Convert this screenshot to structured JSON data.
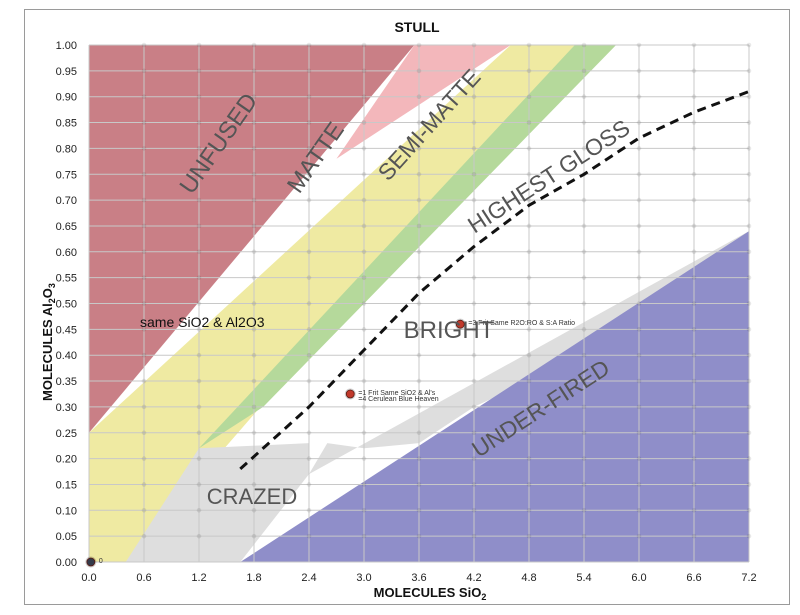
{
  "chart_data": {
    "type": "scatter",
    "title": "STULL",
    "xlabel": {
      "main": "MOLECULES",
      "species": "SiO",
      "sub": "2"
    },
    "ylabel": {
      "main": "MOLECULES",
      "species": "Al",
      "sub1": "2",
      "mid": "O",
      "sub2": "3"
    },
    "xlim": [
      0,
      7.2
    ],
    "ylim": [
      0,
      1.0
    ],
    "x_ticks": [
      "0.0",
      "0.6",
      "1.2",
      "1.8",
      "2.4",
      "3.0",
      "3.6",
      "4.2",
      "4.8",
      "5.4",
      "6.0",
      "6.6",
      "7.2"
    ],
    "y_ticks": [
      "0.00",
      "0.05",
      "0.10",
      "0.15",
      "0.20",
      "0.25",
      "0.30",
      "0.35",
      "0.40",
      "0.45",
      "0.50",
      "0.55",
      "0.60",
      "0.65",
      "0.70",
      "0.75",
      "0.80",
      "0.85",
      "0.90",
      "0.95",
      "1.00"
    ],
    "grid": true,
    "regions": [
      {
        "name": "UNFUSED",
        "color": "#c97f86",
        "polygon": [
          [
            0,
            0.25
          ],
          [
            0,
            1.0
          ],
          [
            3.55,
            1.0
          ]
        ]
      },
      {
        "name": "pink",
        "color": "#f3b7bb",
        "polygon": [
          [
            2.7,
            0.78
          ],
          [
            3.55,
            1.0
          ],
          [
            4.6,
            1.0
          ]
        ]
      },
      {
        "name": "MATTE",
        "color": "#efeaa2",
        "polygon": [
          [
            0,
            0.0
          ],
          [
            0,
            0.25
          ],
          [
            4.6,
            1.0
          ],
          [
            5.3,
            1.0
          ],
          [
            0.4,
            0.0
          ]
        ]
      },
      {
        "name": "SEMI-MATTE",
        "color": "#b5d99b",
        "polygon": [
          [
            1.2,
            0.22
          ],
          [
            5.3,
            1.0
          ],
          [
            5.75,
            1.0
          ],
          [
            1.9,
            0.3
          ]
        ]
      },
      {
        "name": "CRAZED",
        "color": "#dedede",
        "polygon": [
          [
            0.4,
            0.0
          ],
          [
            1.65,
            0.0
          ],
          [
            2.4,
            0.17
          ],
          [
            2.4,
            0.23
          ],
          [
            1.2,
            0.22
          ]
        ]
      },
      {
        "name": "gray-band",
        "color": "#dedede",
        "polygon": [
          [
            2.4,
            0.17
          ],
          [
            7.2,
            0.64
          ],
          [
            7.2,
            0.6
          ],
          [
            6.8,
            0.58
          ],
          [
            5.4,
            0.4
          ],
          [
            4.8,
            0.35
          ],
          [
            4.2,
            0.3
          ],
          [
            3.6,
            0.23
          ],
          [
            3.0,
            0.22
          ],
          [
            2.6,
            0.23
          ]
        ]
      },
      {
        "name": "UNDER-FIRED",
        "color": "#8f8ec9",
        "polygon": [
          [
            1.65,
            0.0
          ],
          [
            7.2,
            0.0
          ],
          [
            7.2,
            0.64
          ]
        ]
      }
    ],
    "series": [
      {
        "name": "HIGHEST GLOSS boundary",
        "style": "dashed",
        "x": [
          1.65,
          2.4,
          3.0,
          3.6,
          4.2,
          4.8,
          5.4,
          6.0,
          6.6,
          7.2
        ],
        "y": [
          0.18,
          0.3,
          0.41,
          0.52,
          0.61,
          0.69,
          0.75,
          0.82,
          0.87,
          0.91
        ]
      }
    ],
    "points": [
      {
        "x": 2.85,
        "y": 0.325,
        "color": "#c0392b",
        "labels": [
          "=1 Frit Same SiO2 & Al's",
          "=4 Cerulean Blue Heaven"
        ]
      },
      {
        "x": 4.05,
        "y": 0.46,
        "color": "#c0392b",
        "labels": [
          "=3 Frit Same R2O:RO & S:A Ratio"
        ]
      },
      {
        "x": 0.02,
        "y": 0.0,
        "color": "#333a4a",
        "labels": [
          "0"
        ]
      }
    ],
    "region_labels": [
      "UNFUSED",
      "MATTE",
      "SEMI-MATTE",
      "HIGHEST GLOSS",
      "BRIGHT",
      "CRAZED",
      "UNDER-FIRED"
    ],
    "annotations": [
      "same SiO2 & Al2O3"
    ]
  }
}
